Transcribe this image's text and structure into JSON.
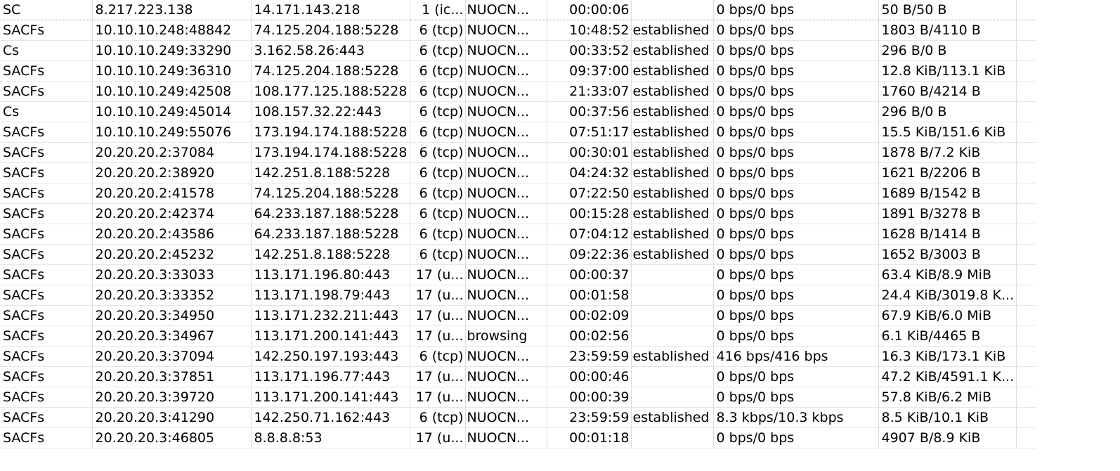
{
  "rows": [
    {
      "flags": "SC",
      "src": "8.217.223.138",
      "dst": "14.171.143.218",
      "proto": "1 (ic...",
      "app": "NUOCN...",
      "duration": "00:00:06",
      "state": "",
      "rate": "0 bps/0 bps",
      "bytes": "50 B/50 B"
    },
    {
      "flags": "SACFs",
      "src": "10.10.10.248:48842",
      "dst": "74.125.204.188:5228",
      "proto": "6 (tcp)",
      "app": "NUOCN...",
      "duration": "10:48:52",
      "state": "established",
      "rate": "0 bps/0 bps",
      "bytes": "1803 B/4110 B"
    },
    {
      "flags": "Cs",
      "src": "10.10.10.249:33290",
      "dst": "3.162.58.26:443",
      "proto": "6 (tcp)",
      "app": "NUOCN...",
      "duration": "00:33:52",
      "state": "established",
      "rate": "0 bps/0 bps",
      "bytes": "296 B/0 B"
    },
    {
      "flags": "SACFs",
      "src": "10.10.10.249:36310",
      "dst": "74.125.204.188:5228",
      "proto": "6 (tcp)",
      "app": "NUOCN...",
      "duration": "09:37:00",
      "state": "established",
      "rate": "0 bps/0 bps",
      "bytes": "12.8 KiB/113.1 KiB"
    },
    {
      "flags": "SACFs",
      "src": "10.10.10.249:42508",
      "dst": "108.177.125.188:5228",
      "proto": "6 (tcp)",
      "app": "NUOCN...",
      "duration": "21:33:07",
      "state": "established",
      "rate": "0 bps/0 bps",
      "bytes": "1760 B/4214 B"
    },
    {
      "flags": "Cs",
      "src": "10.10.10.249:45014",
      "dst": "108.157.32.22:443",
      "proto": "6 (tcp)",
      "app": "NUOCN...",
      "duration": "00:37:56",
      "state": "established",
      "rate": "0 bps/0 bps",
      "bytes": "296 B/0 B"
    },
    {
      "flags": "SACFs",
      "src": "10.10.10.249:55076",
      "dst": "173.194.174.188:5228",
      "proto": "6 (tcp)",
      "app": "NUOCN...",
      "duration": "07:51:17",
      "state": "established",
      "rate": "0 bps/0 bps",
      "bytes": "15.5 KiB/151.6 KiB"
    },
    {
      "flags": "SACFs",
      "src": "20.20.20.2:37084",
      "dst": "173.194.174.188:5228",
      "proto": "6 (tcp)",
      "app": "NUOCN...",
      "duration": "00:30:01",
      "state": "established",
      "rate": "0 bps/0 bps",
      "bytes": "1878 B/7.2 KiB"
    },
    {
      "flags": "SACFs",
      "src": "20.20.20.2:38920",
      "dst": "142.251.8.188:5228",
      "proto": "6 (tcp)",
      "app": "NUOCN...",
      "duration": "04:24:32",
      "state": "established",
      "rate": "0 bps/0 bps",
      "bytes": "1621 B/2206 B"
    },
    {
      "flags": "SACFs",
      "src": "20.20.20.2:41578",
      "dst": "74.125.204.188:5228",
      "proto": "6 (tcp)",
      "app": "NUOCN...",
      "duration": "07:22:50",
      "state": "established",
      "rate": "0 bps/0 bps",
      "bytes": "1689 B/1542 B"
    },
    {
      "flags": "SACFs",
      "src": "20.20.20.2:42374",
      "dst": "64.233.187.188:5228",
      "proto": "6 (tcp)",
      "app": "NUOCN...",
      "duration": "00:15:28",
      "state": "established",
      "rate": "0 bps/0 bps",
      "bytes": "1891 B/3278 B"
    },
    {
      "flags": "SACFs",
      "src": "20.20.20.2:43586",
      "dst": "64.233.187.188:5228",
      "proto": "6 (tcp)",
      "app": "NUOCN...",
      "duration": "07:04:12",
      "state": "established",
      "rate": "0 bps/0 bps",
      "bytes": "1628 B/1414 B"
    },
    {
      "flags": "SACFs",
      "src": "20.20.20.2:45232",
      "dst": "142.251.8.188:5228",
      "proto": "6 (tcp)",
      "app": "NUOCN...",
      "duration": "09:22:36",
      "state": "established",
      "rate": "0 bps/0 bps",
      "bytes": "1652 B/3003 B"
    },
    {
      "flags": "SACFs",
      "src": "20.20.20.3:33033",
      "dst": "113.171.196.80:443",
      "proto": "17 (u...",
      "app": "NUOCN...",
      "duration": "00:00:37",
      "state": "",
      "rate": "0 bps/0 bps",
      "bytes": "63.4 KiB/8.9 MiB"
    },
    {
      "flags": "SACFs",
      "src": "20.20.20.3:33352",
      "dst": "113.171.198.79:443",
      "proto": "17 (u...",
      "app": "NUOCN...",
      "duration": "00:01:58",
      "state": "",
      "rate": "0 bps/0 bps",
      "bytes": "24.4 KiB/3019.8 K..."
    },
    {
      "flags": "SACFs",
      "src": "20.20.20.3:34950",
      "dst": "113.171.232.211:443",
      "proto": "17 (u...",
      "app": "NUOCN...",
      "duration": "00:02:09",
      "state": "",
      "rate": "0 bps/0 bps",
      "bytes": "67.9 KiB/6.0 MiB"
    },
    {
      "flags": "SACFs",
      "src": "20.20.20.3:34967",
      "dst": "113.171.200.141:443",
      "proto": "17 (u...",
      "app": "browsing",
      "duration": "00:02:56",
      "state": "",
      "rate": "0 bps/0 bps",
      "bytes": "6.1 KiB/4465 B"
    },
    {
      "flags": "SACFs",
      "src": "20.20.20.3:37094",
      "dst": "142.250.197.193:443",
      "proto": "6 (tcp)",
      "app": "NUOCN...",
      "duration": "23:59:59",
      "state": "established",
      "rate": "416 bps/416 bps",
      "bytes": "16.3 KiB/173.1 KiB"
    },
    {
      "flags": "SACFs",
      "src": "20.20.20.3:37851",
      "dst": "113.171.196.77:443",
      "proto": "17 (u...",
      "app": "NUOCN...",
      "duration": "00:00:46",
      "state": "",
      "rate": "0 bps/0 bps",
      "bytes": "47.2 KiB/4591.1 K..."
    },
    {
      "flags": "SACFs",
      "src": "20.20.20.3:39720",
      "dst": "113.171.200.141:443",
      "proto": "17 (u...",
      "app": "NUOCN...",
      "duration": "00:00:39",
      "state": "",
      "rate": "0 bps/0 bps",
      "bytes": "57.8 KiB/6.2 MiB"
    },
    {
      "flags": "SACFs",
      "src": "20.20.20.3:41290",
      "dst": "142.250.71.162:443",
      "proto": "6 (tcp)",
      "app": "NUOCN...",
      "duration": "23:59:59",
      "state": "established",
      "rate": "8.3 kbps/10.3 kbps",
      "bytes": "8.5 KiB/10.1 KiB"
    },
    {
      "flags": "SACFs",
      "src": "20.20.20.3:46805",
      "dst": "8.8.8.8:53",
      "proto": "17 (u...",
      "app": "NUOCN...",
      "duration": "00:01:18",
      "state": "",
      "rate": "0 bps/0 bps",
      "bytes": "4907 B/8.9 KiB"
    }
  ]
}
